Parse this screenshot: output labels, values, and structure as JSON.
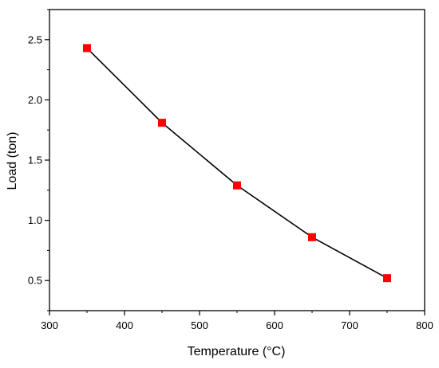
{
  "chart_data": {
    "type": "line",
    "title": "",
    "xlabel": "Temperature (°C)",
    "ylabel": "Load (ton)",
    "xlim": [
      300,
      800
    ],
    "ylim": [
      0.25,
      2.75
    ],
    "xticks": [
      300,
      400,
      500,
      600,
      700,
      800
    ],
    "yticks": [
      0.5,
      1.0,
      1.5,
      2.0,
      2.5
    ],
    "ytick_labels": [
      "0.5",
      "1.0",
      "1.5",
      "2.0",
      "2.5"
    ],
    "grid": false,
    "series": [
      {
        "x": [
          350,
          450,
          550,
          650,
          750
        ],
        "y": [
          2.43,
          1.81,
          1.29,
          0.86,
          0.52
        ],
        "marker": "square",
        "marker_color": "#ff0000",
        "line_color": "#000000"
      }
    ]
  }
}
